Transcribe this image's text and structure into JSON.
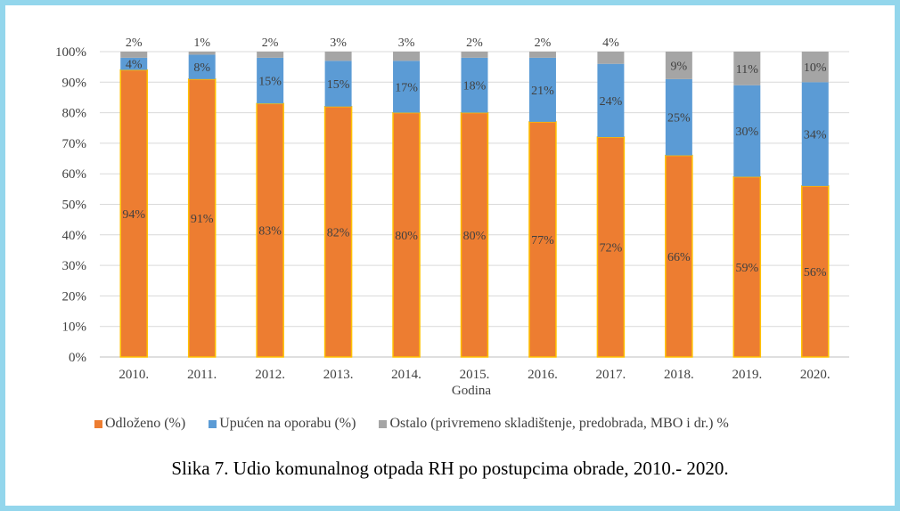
{
  "chart_data": {
    "type": "bar",
    "stacked": true,
    "categories": [
      "2010.",
      "2011.",
      "2012.",
      "2013.",
      "2014.",
      "2015.",
      "2016.",
      "2017.",
      "2018.",
      "2019.",
      "2020."
    ],
    "series": [
      {
        "name": "Odloženo (%)",
        "color": "#ed7d31",
        "values": [
          94,
          91,
          83,
          82,
          80,
          80,
          77,
          72,
          66,
          59,
          56
        ]
      },
      {
        "name": "Upućen na oporabu (%)",
        "color": "#5b9bd5",
        "values": [
          4,
          8,
          15,
          15,
          17,
          18,
          21,
          24,
          25,
          30,
          34
        ]
      },
      {
        "name": "Ostalo (privremeno skladištenje, predobrada, MBO i dr.) %",
        "color": "#a5a5a5",
        "values": [
          2,
          1,
          2,
          3,
          3,
          2,
          2,
          4,
          9,
          11,
          10
        ]
      }
    ],
    "xlabel": "Godina",
    "ylabel": "",
    "ylim": [
      0,
      100
    ],
    "yticks": [
      "0%",
      "10%",
      "20%",
      "30%",
      "40%",
      "50%",
      "60%",
      "70%",
      "80%",
      "90%",
      "100%"
    ],
    "grid": true,
    "legend": "bottom",
    "data_label_suffix": "%"
  },
  "caption": "Slika 7. Udio komunalnog otpada RH po postupcima obrade, 2010.- 2020."
}
